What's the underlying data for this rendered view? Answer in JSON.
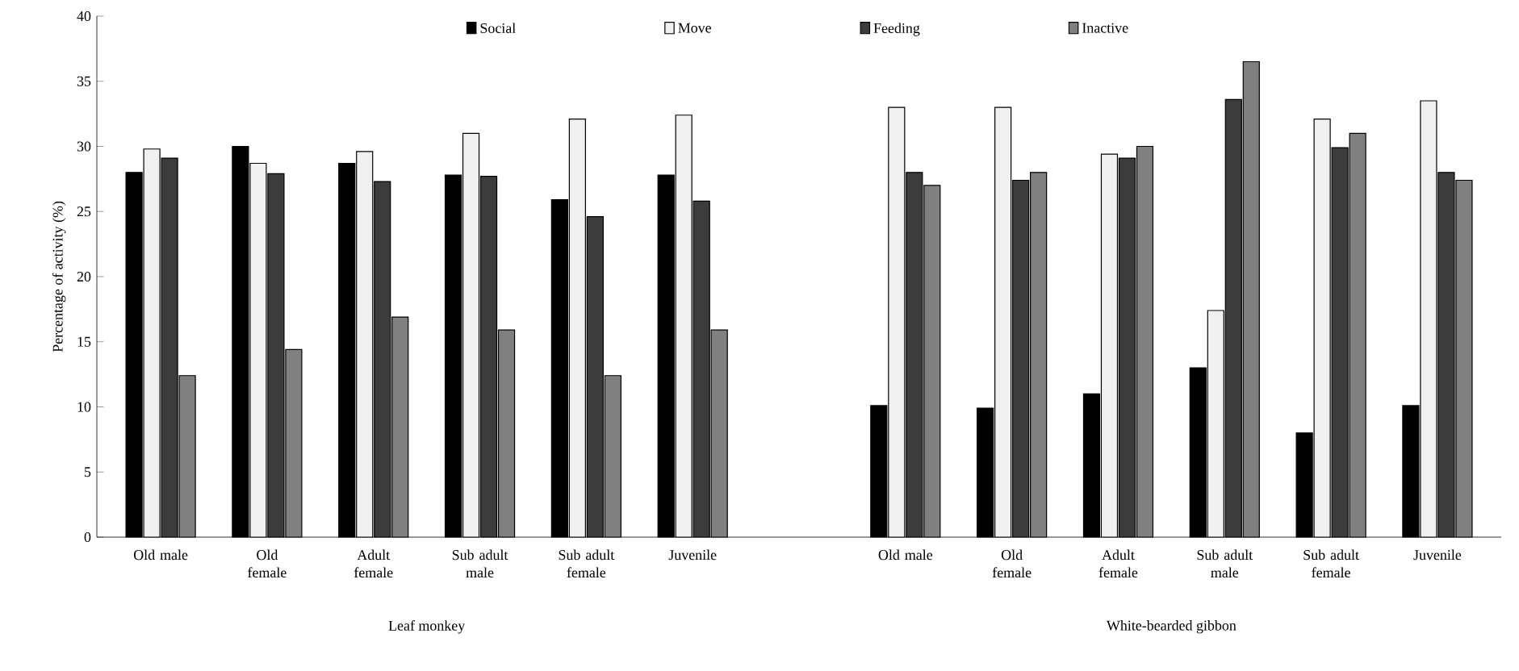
{
  "chart_data": {
    "type": "bar",
    "ylabel": "Percentage of activity (%)",
    "categories": [
      "Old male",
      "Old female",
      "Adult female",
      "Sub adult male",
      "Sub adult female",
      "Juvenile",
      null,
      "Old male",
      "Old female",
      "Adult female",
      "Sub adult male",
      "Sub adult female",
      "Juvenile"
    ],
    "series": [
      {
        "name": "Social",
        "color": "#000000",
        "values": [
          28,
          30,
          28.7,
          27.8,
          25.9,
          27.8,
          null,
          10.1,
          9.9,
          11,
          13,
          8,
          10.1
        ]
      },
      {
        "name": "Move",
        "color": "#f0f0f0",
        "values": [
          29.8,
          28.7,
          29.6,
          31,
          32.1,
          32.4,
          null,
          33,
          33,
          29.4,
          17.4,
          32.1,
          33.5
        ]
      },
      {
        "name": "Feeding",
        "color": "#3c3c3c",
        "values": [
          29.1,
          27.9,
          27.3,
          27.7,
          24.6,
          25.8,
          null,
          28,
          27.4,
          29.1,
          33.6,
          29.9,
          28
        ]
      },
      {
        "name": "Inactive",
        "color": "#808080",
        "values": [
          12.4,
          14.4,
          16.9,
          15.9,
          12.4,
          15.9,
          null,
          27,
          28,
          30,
          36.5,
          31,
          27.4
        ]
      }
    ],
    "ylim": [
      0,
      40
    ],
    "yticks": [
      0,
      5,
      10,
      15,
      20,
      25,
      30,
      35,
      40
    ],
    "grid": false,
    "legend": "top",
    "annotations": [
      "Leaf monkey",
      "White-bearded gibbon"
    ]
  }
}
